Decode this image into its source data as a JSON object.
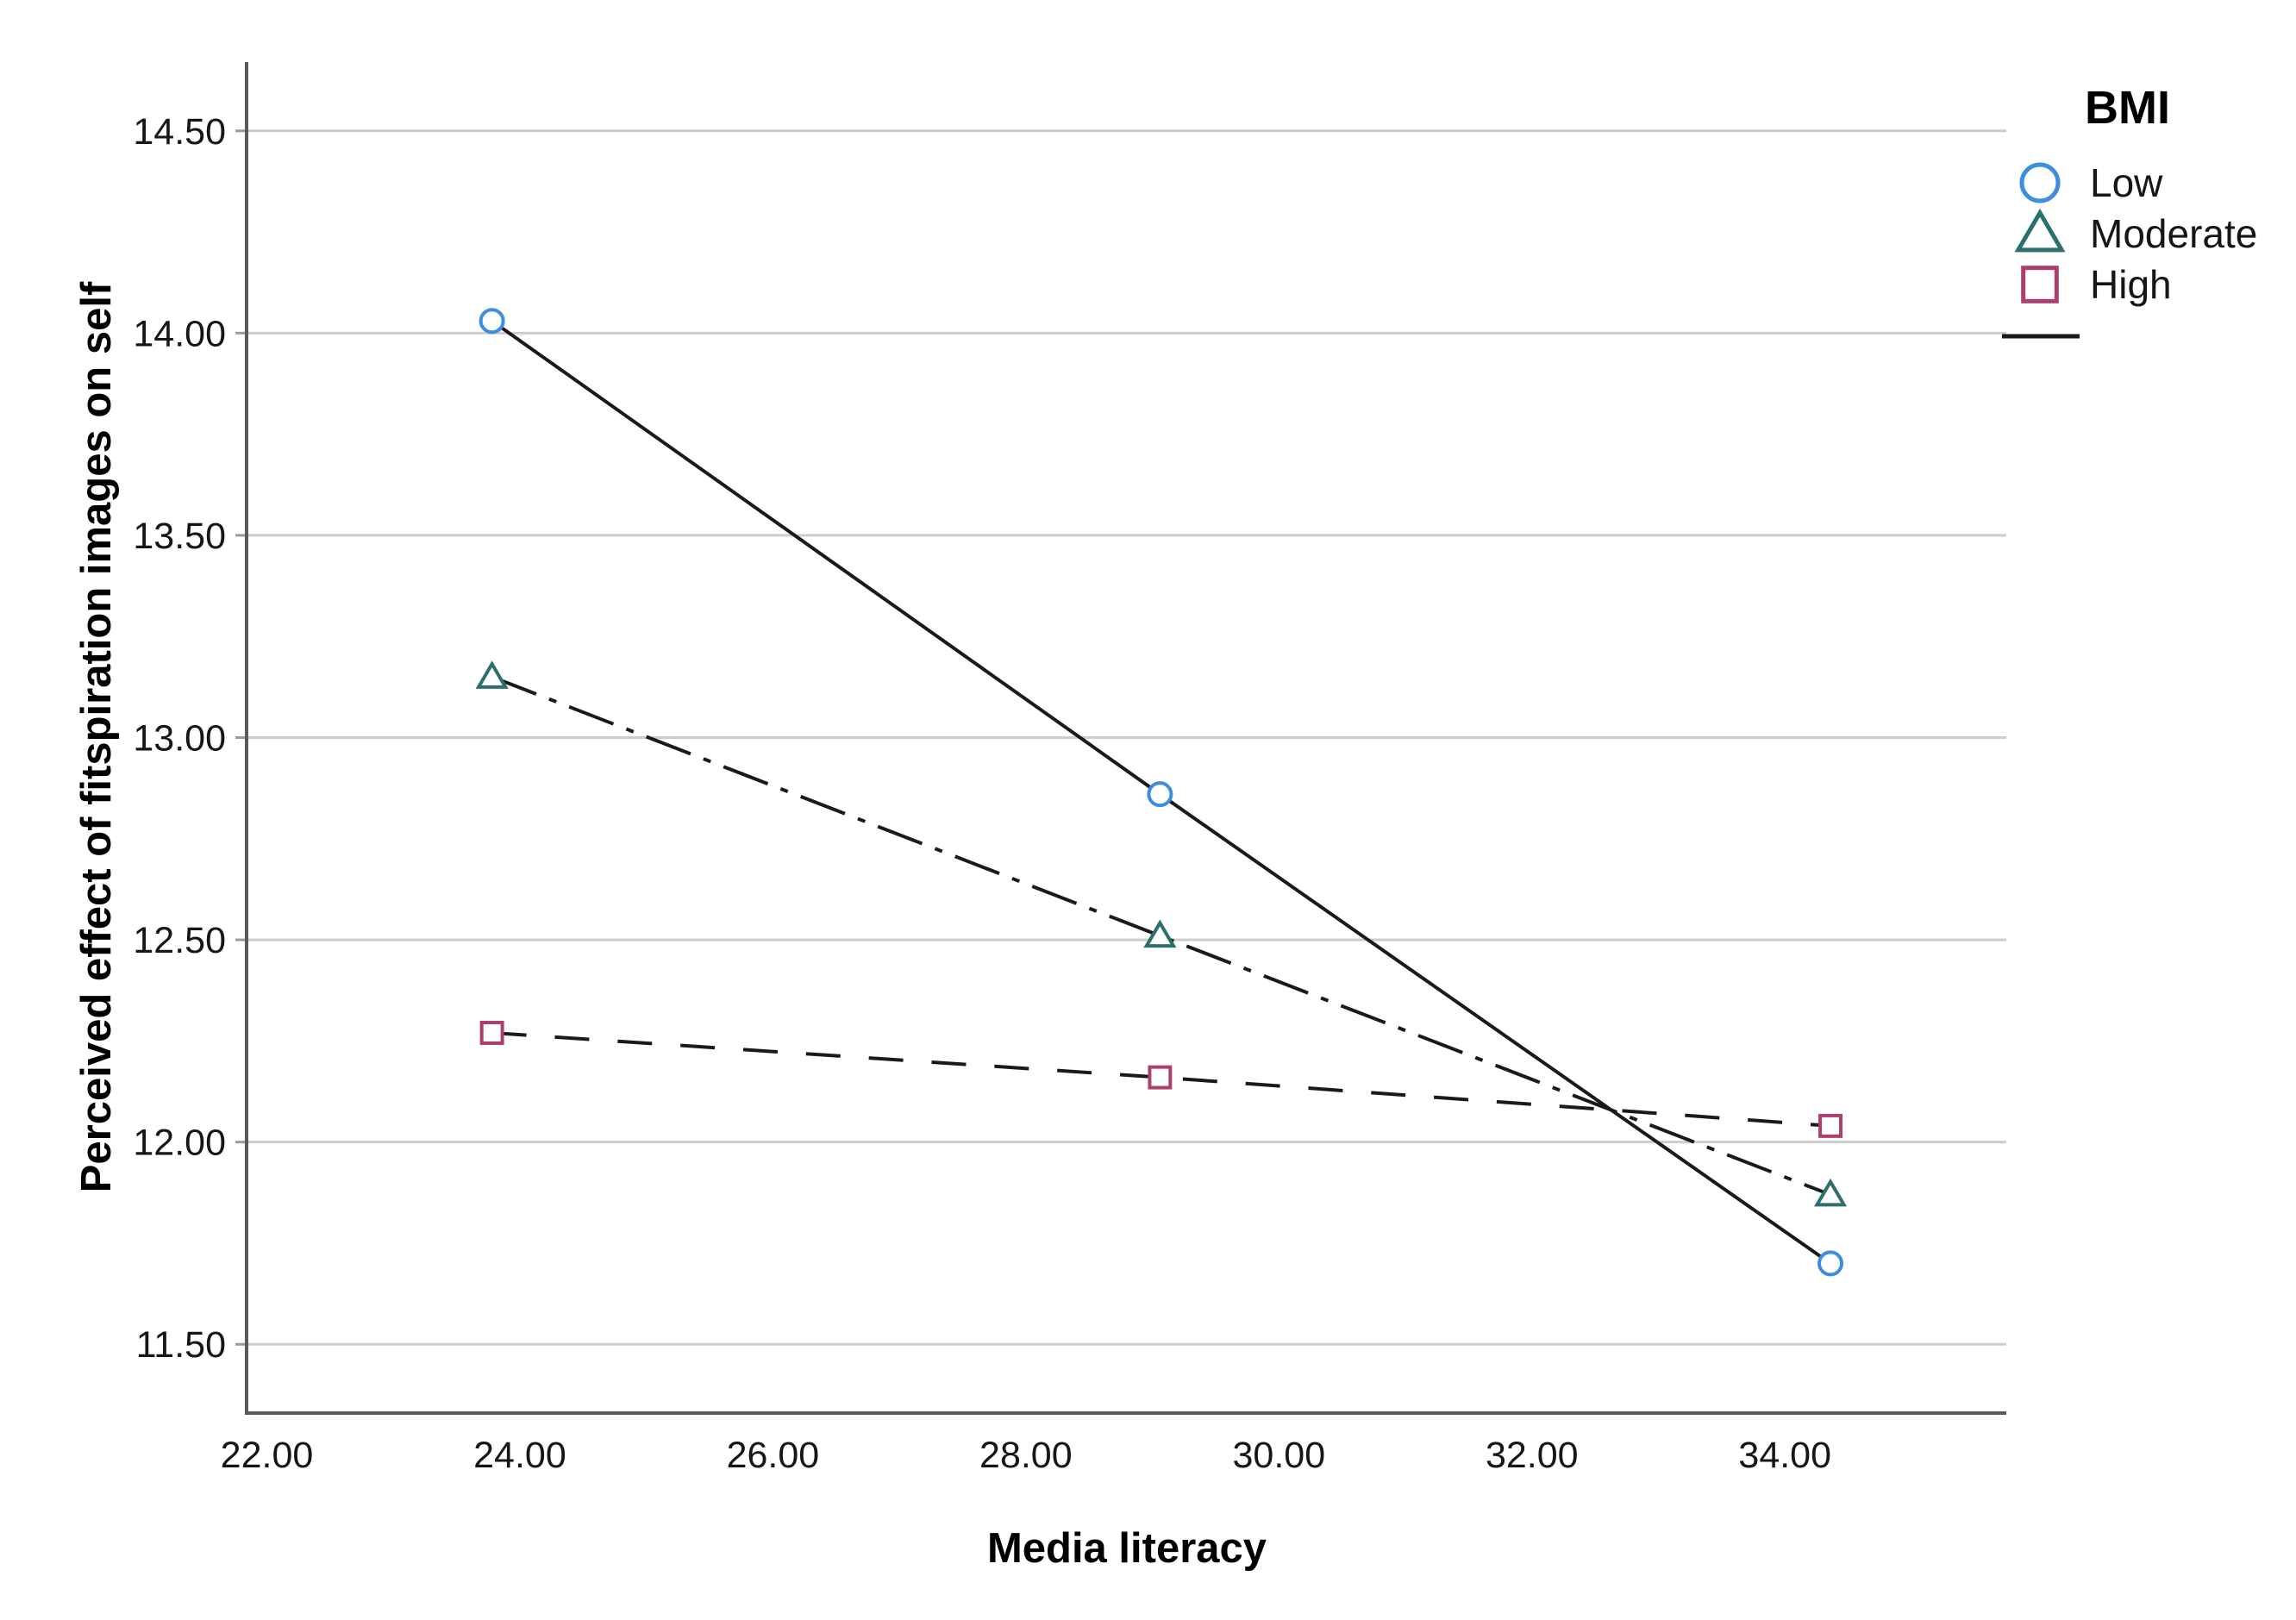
{
  "figure": {
    "background": "#ffffff",
    "legend": {
      "title": "BMI",
      "items": [
        {
          "label": "Low",
          "marker": "circle",
          "color": "#3E8EDE"
        },
        {
          "label": "Moderate",
          "marker": "triangle",
          "color": "#2C6F6D"
        },
        {
          "label": "High",
          "marker": "square",
          "color": "#AD3F6E"
        }
      ],
      "line_sample_color": "#1a1a1a"
    }
  },
  "chart_data": {
    "type": "line",
    "title": "",
    "xlabel": "Media literacy",
    "ylabel": "Perceived effect of fitspiration images on self",
    "x": [
      23.78,
      29.06,
      34.36
    ],
    "series": [
      {
        "name": "Low",
        "values": [
          14.03,
          12.86,
          11.7
        ],
        "line_style": "solid",
        "line_color": "#1a1a1a",
        "marker": "circle",
        "marker_color": "#3E8EDE"
      },
      {
        "name": "Moderate",
        "values": [
          13.15,
          12.51,
          11.87
        ],
        "line_style": "dash-dot",
        "line_color": "#1a1a1a",
        "marker": "triangle",
        "marker_color": "#2C6F6D"
      },
      {
        "name": "High",
        "values": [
          12.27,
          12.16,
          12.04
        ],
        "line_style": "dashed",
        "line_color": "#1a1a1a",
        "marker": "square",
        "marker_color": "#AD3F6E"
      }
    ],
    "x_ticks": [
      22,
      24,
      26,
      28,
      30,
      32,
      34
    ],
    "x_tick_labels": [
      "22.00",
      "24.00",
      "26.00",
      "28.00",
      "30.00",
      "32.00",
      "34.00"
    ],
    "y_ticks": [
      11.5,
      12.0,
      12.5,
      13.0,
      13.5,
      14.0,
      14.5
    ],
    "y_tick_labels": [
      "11.50",
      "12.00",
      "12.50",
      "13.00",
      "13.50",
      "14.00",
      "14.50"
    ],
    "xlim": [
      21.84,
      35.75
    ],
    "ylim": [
      11.33,
      14.67
    ],
    "grid": "horizontal",
    "legend_position": "outside-top-right"
  }
}
